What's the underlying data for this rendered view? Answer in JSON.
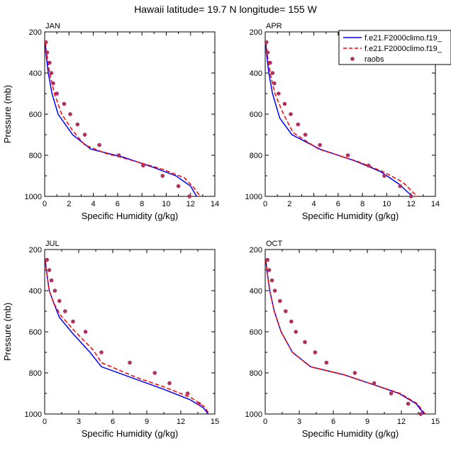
{
  "figure": {
    "title": "Hawaii  latitude= 19.7 N longitude= 155 W"
  },
  "legend": {
    "entries": [
      {
        "label": "f.e21.F2000climo.f19_",
        "style": "solid",
        "color": "#0000ff"
      },
      {
        "label": "f.e21.F2000climo.f19_",
        "style": "dashed",
        "color": "#ff0000"
      },
      {
        "label": "raobs",
        "style": "marker",
        "color": "#b03060"
      }
    ]
  },
  "colors": {
    "model1": "#0000ff",
    "model2": "#ff0000",
    "obs": "#b03060"
  },
  "chart_data": [
    {
      "type": "line",
      "panel": "JAN",
      "xlabel": "Specific Humidity (g/kg)",
      "ylabel": "Pressure (mb)",
      "xlim": [
        0,
        14
      ],
      "ylim": [
        1000,
        200
      ],
      "xticks": [
        0,
        2,
        4,
        6,
        8,
        10,
        12,
        14
      ],
      "yticks": [
        200,
        400,
        600,
        800,
        1000
      ],
      "series": [
        {
          "name": "f.e21.F2000climo.f19_",
          "x": [
            0.05,
            0.1,
            0.3,
            0.6,
            1.1,
            2.3,
            3.8,
            6.5,
            9.0,
            10.8,
            12.0,
            12.5
          ],
          "y": [
            250,
            300,
            400,
            500,
            600,
            700,
            770,
            810,
            860,
            900,
            950,
            1000
          ]
        },
        {
          "name": "f.e21.F2000climo.f19_",
          "x": [
            0.05,
            0.15,
            0.4,
            0.8,
            1.4,
            2.3,
            3.3,
            5.0,
            7.5,
            9.8,
            11.5,
            12.3,
            12.8
          ],
          "y": [
            250,
            300,
            400,
            500,
            600,
            680,
            750,
            790,
            830,
            870,
            910,
            960,
            1000
          ]
        },
        {
          "name": "raobs",
          "x": [
            0.1,
            0.2,
            0.4,
            0.55,
            0.7,
            1.0,
            1.6,
            2.1,
            2.7,
            3.3,
            4.5,
            6.1,
            8.1,
            9.7,
            11.0,
            11.9
          ],
          "y": [
            250,
            300,
            350,
            400,
            450,
            500,
            550,
            600,
            650,
            700,
            750,
            800,
            850,
            900,
            950,
            1000
          ]
        }
      ]
    },
    {
      "type": "line",
      "panel": "APR",
      "xlabel": "Specific Humidity (g/kg)",
      "ylabel": "",
      "xlim": [
        0,
        14
      ],
      "ylim": [
        1000,
        200
      ],
      "xticks": [
        0,
        2,
        4,
        6,
        8,
        10,
        12,
        14
      ],
      "yticks": [
        200,
        400,
        600,
        800,
        1000
      ],
      "series": [
        {
          "name": "f.e21.F2000climo.f19_",
          "x": [
            0.05,
            0.1,
            0.3,
            0.6,
            1.2,
            2.2,
            4.5,
            7.5,
            9.5,
            11.0,
            12.1
          ],
          "y": [
            250,
            300,
            400,
            500,
            620,
            700,
            770,
            830,
            880,
            940,
            1000
          ]
        },
        {
          "name": "f.e21.F2000climo.f19_",
          "x": [
            0.05,
            0.15,
            0.4,
            0.8,
            1.5,
            2.3,
            4.4,
            7.6,
            9.7,
            11.3,
            12.5
          ],
          "y": [
            250,
            300,
            400,
            500,
            600,
            690,
            770,
            830,
            880,
            930,
            1000
          ]
        },
        {
          "name": "raobs",
          "x": [
            0.1,
            0.2,
            0.4,
            0.6,
            0.75,
            1.1,
            1.6,
            2.1,
            2.7,
            3.3,
            4.5,
            6.8,
            8.5,
            9.8,
            11.1,
            12.0
          ],
          "y": [
            250,
            300,
            350,
            400,
            450,
            500,
            550,
            600,
            650,
            700,
            750,
            800,
            850,
            900,
            950,
            1000
          ]
        }
      ]
    },
    {
      "type": "line",
      "panel": "JUL",
      "xlabel": "Specific Humidity (g/kg)",
      "ylabel": "Pressure (mb)",
      "xlim": [
        0,
        15
      ],
      "ylim": [
        1000,
        200
      ],
      "xticks": [
        0,
        3,
        6,
        9,
        12,
        15
      ],
      "yticks": [
        200,
        400,
        600,
        800,
        1000
      ],
      "series": [
        {
          "name": "f.e21.F2000climo.f19_",
          "x": [
            0.05,
            0.15,
            0.4,
            0.8,
            1.3,
            2.5,
            4.0,
            5.0,
            8.0,
            10.5,
            12.8,
            14.0,
            14.4
          ],
          "y": [
            250,
            300,
            400,
            460,
            530,
            610,
            700,
            770,
            830,
            880,
            930,
            970,
            1000
          ]
        },
        {
          "name": "f.e21.F2000climo.f19_",
          "x": [
            0.05,
            0.15,
            0.4,
            0.8,
            1.4,
            2.7,
            4.3,
            5.0,
            8.0,
            10.6,
            12.9,
            14.1,
            14.5
          ],
          "y": [
            250,
            300,
            400,
            460,
            520,
            600,
            690,
            750,
            820,
            870,
            920,
            965,
            1000
          ]
        },
        {
          "name": "raobs",
          "x": [
            0.2,
            0.4,
            0.6,
            0.9,
            1.3,
            1.8,
            2.5,
            3.6,
            5.0,
            7.5,
            9.7,
            11.0,
            12.6,
            13.6
          ],
          "y": [
            250,
            300,
            350,
            400,
            450,
            500,
            550,
            600,
            700,
            750,
            800,
            850,
            900,
            950
          ]
        }
      ]
    },
    {
      "type": "line",
      "panel": "OCT",
      "xlabel": "Specific Humidity (g/kg)",
      "ylabel": "",
      "xlim": [
        0,
        15
      ],
      "ylim": [
        1000,
        200
      ],
      "xticks": [
        0,
        3,
        6,
        9,
        12,
        15
      ],
      "yticks": [
        200,
        400,
        600,
        800,
        1000
      ],
      "series": [
        {
          "name": "f.e21.F2000climo.f19_",
          "x": [
            0.05,
            0.15,
            0.4,
            0.8,
            1.4,
            2.4,
            4.0,
            7.0,
            9.7,
            11.8,
            13.3,
            14.0
          ],
          "y": [
            250,
            300,
            400,
            500,
            600,
            700,
            770,
            810,
            860,
            900,
            950,
            1000
          ]
        },
        {
          "name": "f.e21.F2000climo.f19_",
          "x": [
            0.05,
            0.15,
            0.4,
            0.8,
            1.4,
            2.4,
            4.0,
            7.0,
            9.7,
            11.9,
            13.4,
            14.1
          ],
          "y": [
            250,
            300,
            400,
            500,
            600,
            700,
            770,
            810,
            860,
            900,
            950,
            1000
          ]
        },
        {
          "name": "raobs",
          "x": [
            0.2,
            0.35,
            0.6,
            0.85,
            1.3,
            1.8,
            2.3,
            2.7,
            3.5,
            4.4,
            5.4,
            7.9,
            9.6,
            11.1,
            12.6,
            13.7
          ],
          "y": [
            250,
            300,
            350,
            400,
            450,
            500,
            550,
            600,
            650,
            700,
            750,
            800,
            850,
            900,
            950,
            1000
          ]
        }
      ]
    }
  ]
}
